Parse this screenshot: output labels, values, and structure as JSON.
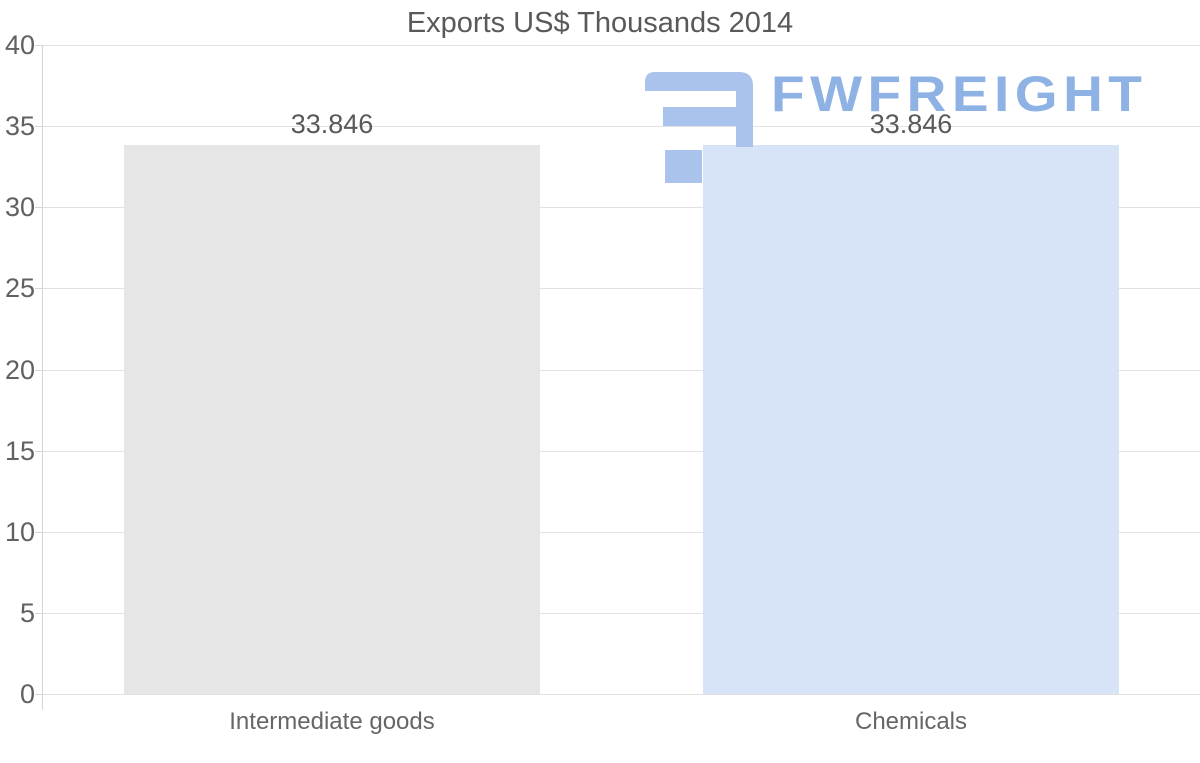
{
  "chart_data": {
    "type": "bar",
    "title": "Exports US$ Thousands 2014",
    "categories": [
      "Intermediate goods",
      "Chemicals"
    ],
    "series": [
      {
        "name": "Exports US$ Thousands 2014",
        "values": [
          33.846,
          33.846
        ]
      }
    ],
    "value_labels": [
      "33.846",
      "33.846"
    ],
    "bar_colors": [
      "#e6e6e6",
      "#d7e4f8"
    ],
    "yticks": [
      0,
      5,
      10,
      15,
      20,
      25,
      30,
      35,
      40
    ],
    "ylim": [
      0,
      40
    ],
    "xlabel": "",
    "ylabel": "",
    "grid": true,
    "legend_position": "none"
  },
  "watermark": {
    "logo_icon": "fwfreight-logo",
    "text": "FWFREIGHT",
    "glyph_color": "#a9c3ec",
    "text_color": "#8fb2e4"
  },
  "colors": {
    "background": "#ffffff",
    "title_text": "#595959",
    "axis_label_text": "#616161",
    "category_label_text": "#666666",
    "gridline": "#e2e2e2",
    "axis_line": "#d5d5d5"
  }
}
